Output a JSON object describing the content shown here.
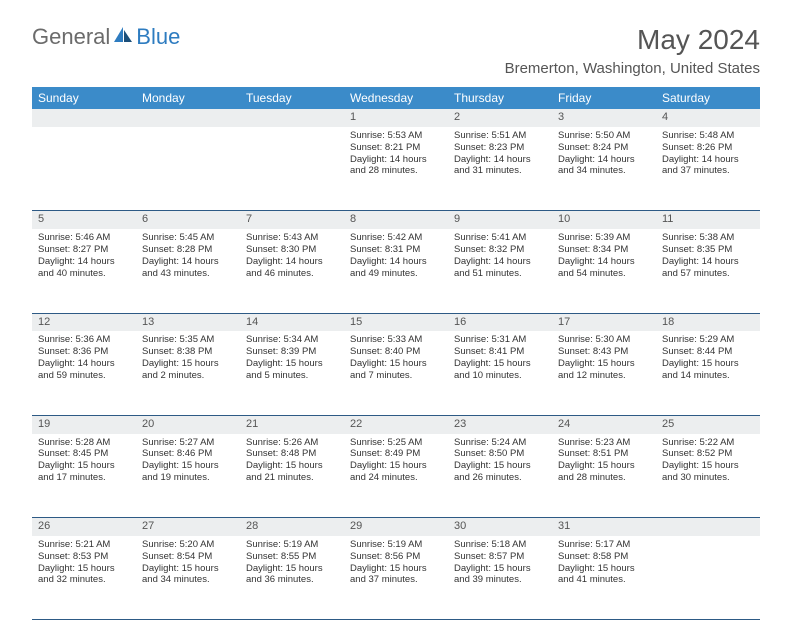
{
  "brand": {
    "part1": "General",
    "part2": "Blue"
  },
  "title": "May 2024",
  "subtitle": "Bremerton, Washington, United States",
  "colors": {
    "header_bg": "#3b8bc9",
    "header_text": "#ffffff",
    "daynum_bg": "#eceeef",
    "row_divider": "#2d5a85",
    "body_text": "#333333",
    "title_text": "#555555",
    "logo_gray": "#6b6b6b",
    "logo_blue": "#2e7cc0"
  },
  "typography": {
    "title_fontsize": 28,
    "subtitle_fontsize": 15,
    "header_fontsize": 12,
    "daynum_fontsize": 11,
    "cell_fontsize": 9.5
  },
  "days_of_week": [
    "Sunday",
    "Monday",
    "Tuesday",
    "Wednesday",
    "Thursday",
    "Friday",
    "Saturday"
  ],
  "weeks": [
    {
      "nums": [
        "",
        "",
        "",
        "1",
        "2",
        "3",
        "4"
      ],
      "cells": [
        null,
        null,
        null,
        {
          "sr": "Sunrise: 5:53 AM",
          "ss": "Sunset: 8:21 PM",
          "d1": "Daylight: 14 hours",
          "d2": "and 28 minutes."
        },
        {
          "sr": "Sunrise: 5:51 AM",
          "ss": "Sunset: 8:23 PM",
          "d1": "Daylight: 14 hours",
          "d2": "and 31 minutes."
        },
        {
          "sr": "Sunrise: 5:50 AM",
          "ss": "Sunset: 8:24 PM",
          "d1": "Daylight: 14 hours",
          "d2": "and 34 minutes."
        },
        {
          "sr": "Sunrise: 5:48 AM",
          "ss": "Sunset: 8:26 PM",
          "d1": "Daylight: 14 hours",
          "d2": "and 37 minutes."
        }
      ]
    },
    {
      "nums": [
        "5",
        "6",
        "7",
        "8",
        "9",
        "10",
        "11"
      ],
      "cells": [
        {
          "sr": "Sunrise: 5:46 AM",
          "ss": "Sunset: 8:27 PM",
          "d1": "Daylight: 14 hours",
          "d2": "and 40 minutes."
        },
        {
          "sr": "Sunrise: 5:45 AM",
          "ss": "Sunset: 8:28 PM",
          "d1": "Daylight: 14 hours",
          "d2": "and 43 minutes."
        },
        {
          "sr": "Sunrise: 5:43 AM",
          "ss": "Sunset: 8:30 PM",
          "d1": "Daylight: 14 hours",
          "d2": "and 46 minutes."
        },
        {
          "sr": "Sunrise: 5:42 AM",
          "ss": "Sunset: 8:31 PM",
          "d1": "Daylight: 14 hours",
          "d2": "and 49 minutes."
        },
        {
          "sr": "Sunrise: 5:41 AM",
          "ss": "Sunset: 8:32 PM",
          "d1": "Daylight: 14 hours",
          "d2": "and 51 minutes."
        },
        {
          "sr": "Sunrise: 5:39 AM",
          "ss": "Sunset: 8:34 PM",
          "d1": "Daylight: 14 hours",
          "d2": "and 54 minutes."
        },
        {
          "sr": "Sunrise: 5:38 AM",
          "ss": "Sunset: 8:35 PM",
          "d1": "Daylight: 14 hours",
          "d2": "and 57 minutes."
        }
      ]
    },
    {
      "nums": [
        "12",
        "13",
        "14",
        "15",
        "16",
        "17",
        "18"
      ],
      "cells": [
        {
          "sr": "Sunrise: 5:36 AM",
          "ss": "Sunset: 8:36 PM",
          "d1": "Daylight: 14 hours",
          "d2": "and 59 minutes."
        },
        {
          "sr": "Sunrise: 5:35 AM",
          "ss": "Sunset: 8:38 PM",
          "d1": "Daylight: 15 hours",
          "d2": "and 2 minutes."
        },
        {
          "sr": "Sunrise: 5:34 AM",
          "ss": "Sunset: 8:39 PM",
          "d1": "Daylight: 15 hours",
          "d2": "and 5 minutes."
        },
        {
          "sr": "Sunrise: 5:33 AM",
          "ss": "Sunset: 8:40 PM",
          "d1": "Daylight: 15 hours",
          "d2": "and 7 minutes."
        },
        {
          "sr": "Sunrise: 5:31 AM",
          "ss": "Sunset: 8:41 PM",
          "d1": "Daylight: 15 hours",
          "d2": "and 10 minutes."
        },
        {
          "sr": "Sunrise: 5:30 AM",
          "ss": "Sunset: 8:43 PM",
          "d1": "Daylight: 15 hours",
          "d2": "and 12 minutes."
        },
        {
          "sr": "Sunrise: 5:29 AM",
          "ss": "Sunset: 8:44 PM",
          "d1": "Daylight: 15 hours",
          "d2": "and 14 minutes."
        }
      ]
    },
    {
      "nums": [
        "19",
        "20",
        "21",
        "22",
        "23",
        "24",
        "25"
      ],
      "cells": [
        {
          "sr": "Sunrise: 5:28 AM",
          "ss": "Sunset: 8:45 PM",
          "d1": "Daylight: 15 hours",
          "d2": "and 17 minutes."
        },
        {
          "sr": "Sunrise: 5:27 AM",
          "ss": "Sunset: 8:46 PM",
          "d1": "Daylight: 15 hours",
          "d2": "and 19 minutes."
        },
        {
          "sr": "Sunrise: 5:26 AM",
          "ss": "Sunset: 8:48 PM",
          "d1": "Daylight: 15 hours",
          "d2": "and 21 minutes."
        },
        {
          "sr": "Sunrise: 5:25 AM",
          "ss": "Sunset: 8:49 PM",
          "d1": "Daylight: 15 hours",
          "d2": "and 24 minutes."
        },
        {
          "sr": "Sunrise: 5:24 AM",
          "ss": "Sunset: 8:50 PM",
          "d1": "Daylight: 15 hours",
          "d2": "and 26 minutes."
        },
        {
          "sr": "Sunrise: 5:23 AM",
          "ss": "Sunset: 8:51 PM",
          "d1": "Daylight: 15 hours",
          "d2": "and 28 minutes."
        },
        {
          "sr": "Sunrise: 5:22 AM",
          "ss": "Sunset: 8:52 PM",
          "d1": "Daylight: 15 hours",
          "d2": "and 30 minutes."
        }
      ]
    },
    {
      "nums": [
        "26",
        "27",
        "28",
        "29",
        "30",
        "31",
        ""
      ],
      "cells": [
        {
          "sr": "Sunrise: 5:21 AM",
          "ss": "Sunset: 8:53 PM",
          "d1": "Daylight: 15 hours",
          "d2": "and 32 minutes."
        },
        {
          "sr": "Sunrise: 5:20 AM",
          "ss": "Sunset: 8:54 PM",
          "d1": "Daylight: 15 hours",
          "d2": "and 34 minutes."
        },
        {
          "sr": "Sunrise: 5:19 AM",
          "ss": "Sunset: 8:55 PM",
          "d1": "Daylight: 15 hours",
          "d2": "and 36 minutes."
        },
        {
          "sr": "Sunrise: 5:19 AM",
          "ss": "Sunset: 8:56 PM",
          "d1": "Daylight: 15 hours",
          "d2": "and 37 minutes."
        },
        {
          "sr": "Sunrise: 5:18 AM",
          "ss": "Sunset: 8:57 PM",
          "d1": "Daylight: 15 hours",
          "d2": "and 39 minutes."
        },
        {
          "sr": "Sunrise: 5:17 AM",
          "ss": "Sunset: 8:58 PM",
          "d1": "Daylight: 15 hours",
          "d2": "and 41 minutes."
        },
        null
      ]
    }
  ]
}
